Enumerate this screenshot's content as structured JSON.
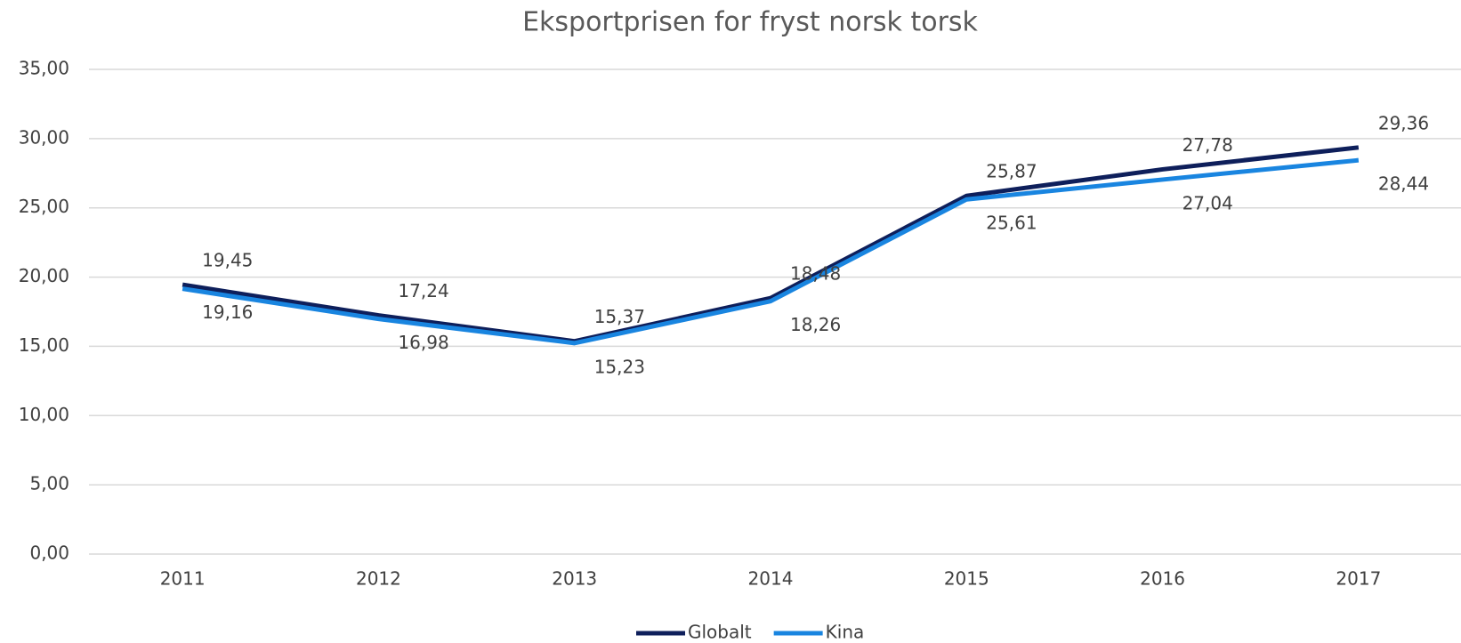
{
  "chart_data": {
    "type": "line",
    "title": "Eksportprisen for fryst norsk torsk",
    "categories": [
      "2011",
      "2012",
      "2013",
      "2014",
      "2015",
      "2016",
      "2017"
    ],
    "series": [
      {
        "name": "Globalt",
        "color": "#0e1f5b",
        "values": [
          19.45,
          17.24,
          15.37,
          18.48,
          25.87,
          27.78,
          29.36
        ],
        "value_labels": [
          "19,45",
          "17,24",
          "15,37",
          "18,48",
          "25,87",
          "27,78",
          "29,36"
        ]
      },
      {
        "name": "Kina",
        "color": "#1985e0",
        "values": [
          19.16,
          16.98,
          15.23,
          18.26,
          25.61,
          27.04,
          28.44
        ],
        "value_labels": [
          "19,16",
          "16,98",
          "15,23",
          "18,26",
          "25,61",
          "27,04",
          "28,44"
        ]
      }
    ],
    "ylim": [
      0,
      35
    ],
    "yticks": [
      {
        "value": 0,
        "label": "0,00"
      },
      {
        "value": 5,
        "label": "5,00"
      },
      {
        "value": 10,
        "label": "10,00"
      },
      {
        "value": 15,
        "label": "15,00"
      },
      {
        "value": 20,
        "label": "20,00"
      },
      {
        "value": 25,
        "label": "25,00"
      },
      {
        "value": 30,
        "label": "30,00"
      },
      {
        "value": 35,
        "label": "35,00"
      }
    ],
    "grid": true,
    "legend": "bottom"
  }
}
